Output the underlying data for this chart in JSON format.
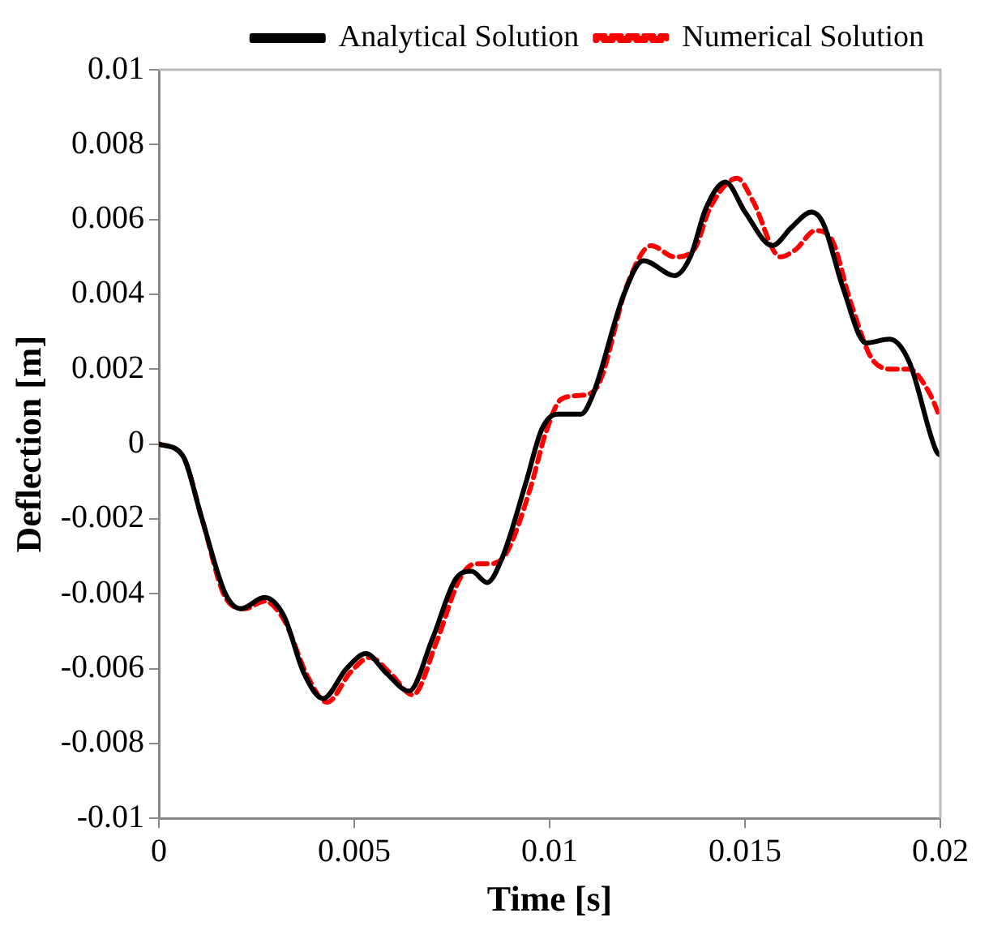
{
  "chart_data": {
    "type": "line",
    "xlabel": "Time [s]",
    "ylabel": "Deflection [m]",
    "xlim": [
      0,
      0.02
    ],
    "xticks": [
      0,
      0.005,
      0.01,
      0.015,
      0.02
    ],
    "ylim": [
      -0.01,
      0.01
    ],
    "yticks": [
      -0.01,
      -0.008,
      -0.006,
      -0.004,
      -0.002,
      0,
      0.002,
      0.004,
      0.006,
      0.008,
      0.01
    ],
    "grid": false,
    "legend": "top right",
    "marker": "none",
    "series": [
      {
        "name": "Analytical Solution",
        "color": "#000000",
        "line_style": "solid",
        "x": [
          0,
          0.0006,
          0.0011,
          0.0017,
          0.0021,
          0.0027,
          0.0032,
          0.0037,
          0.0042,
          0.0048,
          0.0053,
          0.0058,
          0.0064,
          0.007,
          0.0076,
          0.008,
          0.0084,
          0.0088,
          0.0094,
          0.0098,
          0.0102,
          0.0108,
          0.0111,
          0.0119,
          0.0124,
          0.0132,
          0.0136,
          0.014,
          0.0145,
          0.015,
          0.0157,
          0.0162,
          0.0167,
          0.017,
          0.0175,
          0.0181,
          0.0187,
          0.0192,
          0.0199,
          0.02
        ],
        "values": [
          0,
          -0.0003,
          -0.002,
          -0.004,
          -0.0044,
          -0.0041,
          -0.0046,
          -0.0061,
          -0.0068,
          -0.006,
          -0.0056,
          -0.0061,
          -0.0066,
          -0.0052,
          -0.0036,
          -0.0034,
          -0.0037,
          -0.003,
          -0.001,
          0.0004,
          0.0008,
          0.0008,
          0.0013,
          0.004,
          0.0049,
          0.0045,
          0.005,
          0.0063,
          0.007,
          0.0062,
          0.0053,
          0.0058,
          0.0062,
          0.0059,
          0.0042,
          0.0027,
          0.0028,
          0.0022,
          -0.0002,
          -0.0003
        ]
      },
      {
        "name": "Numerical Solution",
        "color": "#ff0000",
        "line_style": "dashed",
        "x": [
          0,
          0.0006,
          0.0011,
          0.0017,
          0.0022,
          0.0027,
          0.0032,
          0.0038,
          0.0043,
          0.0049,
          0.0054,
          0.0059,
          0.0065,
          0.0071,
          0.0077,
          0.0081,
          0.0085,
          0.0089,
          0.0095,
          0.0099,
          0.0103,
          0.0108,
          0.0112,
          0.012,
          0.0126,
          0.0132,
          0.0137,
          0.0141,
          0.0148,
          0.0152,
          0.0159,
          0.0163,
          0.0168,
          0.0172,
          0.0177,
          0.0183,
          0.0188,
          0.0192,
          0.0197,
          0.02
        ],
        "values": [
          0,
          -0.0003,
          -0.002,
          -0.0041,
          -0.0044,
          -0.0042,
          -0.0047,
          -0.0062,
          -0.0069,
          -0.0061,
          -0.0057,
          -0.0061,
          -0.0067,
          -0.0053,
          -0.0036,
          -0.0032,
          -0.0032,
          -0.0029,
          -0.0012,
          0.0003,
          0.0012,
          0.0013,
          0.0015,
          0.0043,
          0.0053,
          0.005,
          0.0052,
          0.0063,
          0.0071,
          0.0065,
          0.005,
          0.0052,
          0.0057,
          0.0055,
          0.0038,
          0.0022,
          0.002,
          0.002,
          0.0014,
          0.0007
        ]
      }
    ]
  }
}
